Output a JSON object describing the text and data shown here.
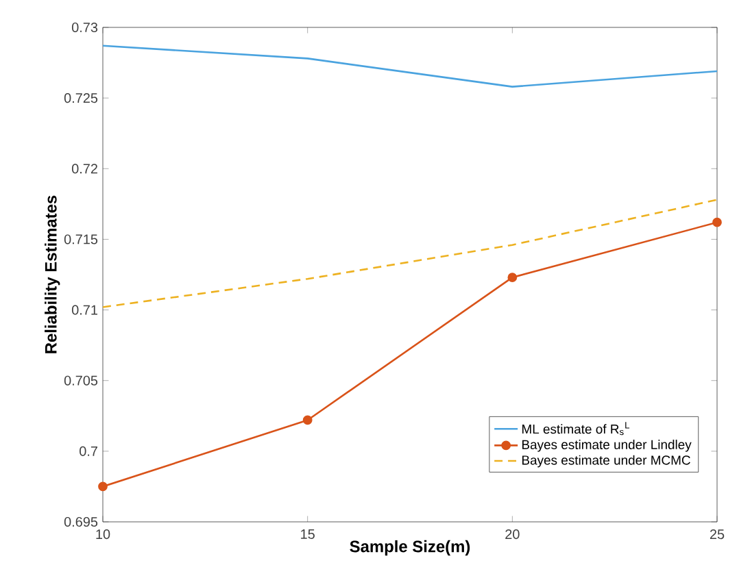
{
  "chart_data": {
    "type": "line",
    "xlabel": "Sample Size(m)",
    "ylabel": "Reliability Estimates",
    "x": [
      10,
      15,
      20,
      25
    ],
    "series": [
      {
        "name": "ML  estimate of R$_{s}$$^{L}$",
        "color": "#4aa3df",
        "values": [
          0.7287,
          0.7278,
          0.7258,
          0.7269
        ],
        "marker": "none",
        "line_style": "solid"
      },
      {
        "name": "Bayes estimate under Lindley",
        "color": "#d95319",
        "values": [
          0.6975,
          0.7022,
          0.7123,
          0.7162
        ],
        "marker": "circle",
        "line_style": "solid"
      },
      {
        "name": "Bayes estimate under MCMC",
        "color": "#edb120",
        "values": [
          0.7102,
          0.7122,
          0.7146,
          0.7178
        ],
        "marker": "none",
        "line_style": "dashed"
      }
    ],
    "xlim": [
      10,
      25
    ],
    "ylim": [
      0.695,
      0.73
    ],
    "xticks": [
      10,
      15,
      20,
      25
    ],
    "yticks": [
      0.695,
      0.7,
      0.705,
      0.71,
      0.715,
      0.72,
      0.725,
      0.73
    ],
    "grid": false,
    "legend": "bottom right"
  }
}
